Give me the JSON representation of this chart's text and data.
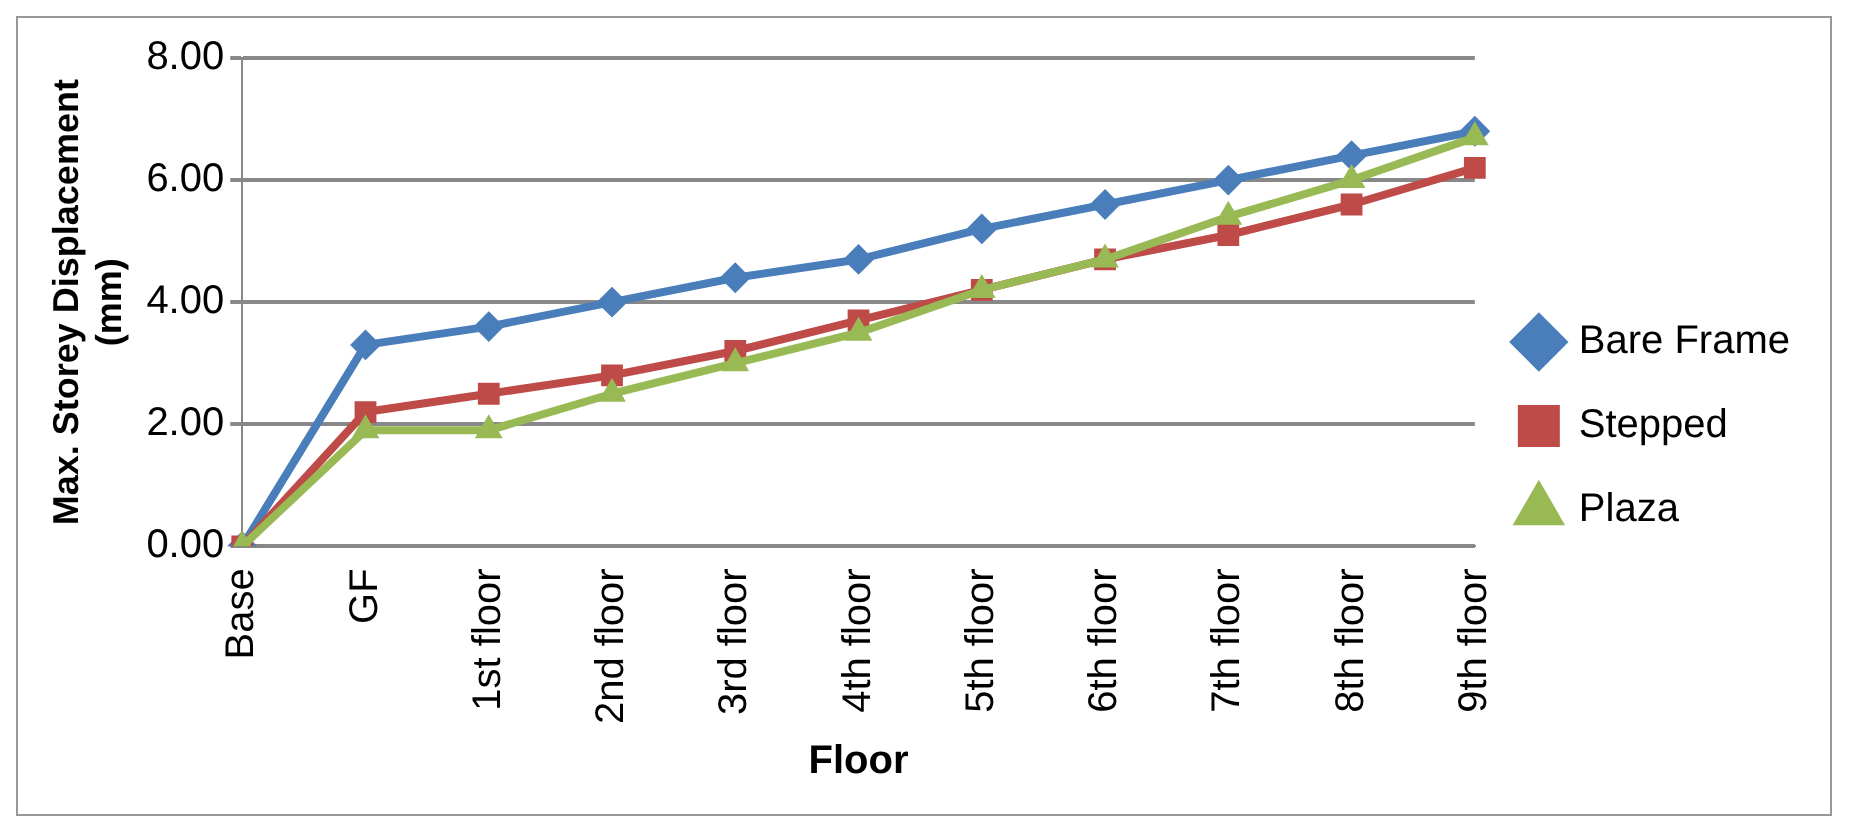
{
  "chart_data": {
    "type": "line",
    "xlabel": "Floor",
    "ylabel": "Max. Storey Displacement (mm)",
    "categories": [
      "Base",
      "GF",
      "1st floor",
      "2nd floor",
      "3rd floor",
      "4th floor",
      "5th floor",
      "6th floor",
      "7th floor",
      "8th floor",
      "9th floor"
    ],
    "series": [
      {
        "name": "Bare Frame",
        "color": "#4a7ebb",
        "marker": "diamond",
        "values": [
          0,
          3.3,
          3.6,
          4.0,
          4.4,
          4.7,
          5.2,
          5.6,
          6.0,
          6.4,
          6.8
        ]
      },
      {
        "name": "Stepped",
        "color": "#be4b48",
        "marker": "square",
        "values": [
          0,
          2.2,
          2.5,
          2.8,
          3.2,
          3.7,
          4.2,
          4.7,
          5.1,
          5.6,
          6.2
        ]
      },
      {
        "name": "Plaza",
        "color": "#98b954",
        "marker": "triangle",
        "values": [
          0,
          1.9,
          1.9,
          2.5,
          3.0,
          3.5,
          4.2,
          4.7,
          5.4,
          6.0,
          6.7
        ]
      }
    ],
    "ylim": [
      0,
      8
    ],
    "yticks": [
      {
        "value": 0,
        "label": "0.00"
      },
      {
        "value": 2,
        "label": "2.00"
      },
      {
        "value": 4,
        "label": "4.00"
      },
      {
        "value": 6,
        "label": "6.00"
      },
      {
        "value": 8,
        "label": "8.00"
      }
    ],
    "grid": "y",
    "legend": "right",
    "line_style": "solid"
  }
}
